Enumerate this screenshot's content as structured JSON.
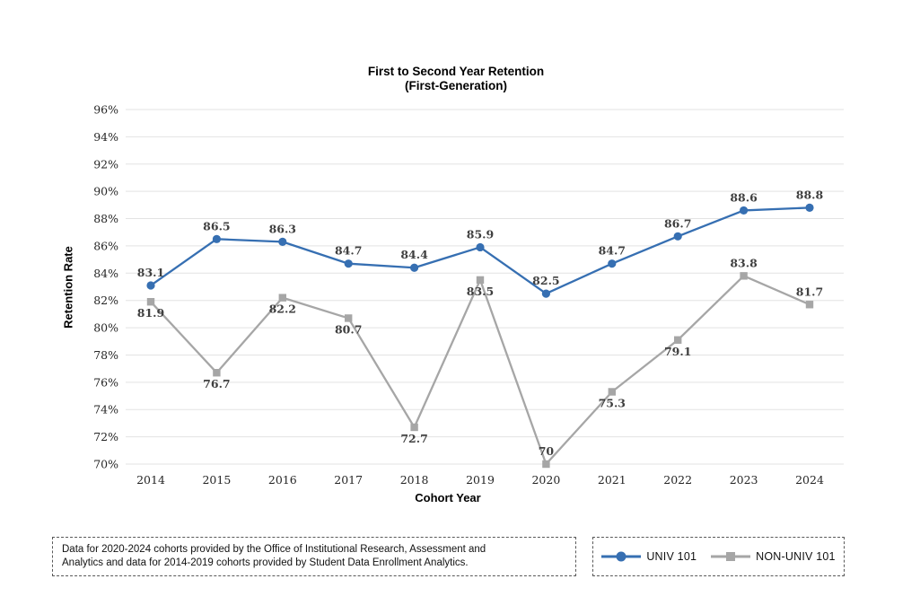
{
  "chart_data": {
    "type": "line",
    "title": "First to Second Year Retention",
    "subtitle": "(First-Generation)",
    "xlabel": "Cohort Year",
    "ylabel": "Retention Rate",
    "ylim": [
      70,
      96
    ],
    "ytick_step": 2,
    "ytick_suffix": "%",
    "grid": true,
    "legend_position": "bottom-right",
    "gridline_color": "#e3e3e3",
    "categories": [
      "2014",
      "2015",
      "2016",
      "2017",
      "2018",
      "2019",
      "2020",
      "2021",
      "2022",
      "2023",
      "2024"
    ],
    "series": [
      {
        "name": "UNIV 101",
        "color": "#366FB2",
        "marker": "circle",
        "values": [
          83.1,
          86.5,
          86.3,
          84.7,
          84.4,
          85.9,
          82.5,
          84.7,
          86.7,
          88.6,
          88.8
        ],
        "label_positions": [
          "above",
          "above",
          "above",
          "above",
          "above",
          "above",
          "above",
          "above",
          "above",
          "above",
          "above"
        ]
      },
      {
        "name": "NON-UNIV 101",
        "color": "#A6A6A6",
        "marker": "square",
        "values": [
          81.9,
          76.7,
          82.2,
          80.7,
          72.7,
          83.5,
          70,
          75.3,
          79.1,
          83.8,
          81.7
        ],
        "label_positions": [
          "below",
          "below",
          "below",
          "below",
          "below",
          "below",
          "above",
          "below",
          "below",
          "above",
          "above"
        ]
      }
    ]
  },
  "footnote": {
    "text": "Data for 2020-2024 cohorts provided by the Office of Institutional Research, Assessment and Analytics and data for 2014-2019 cohorts provided by Student Data Enrollment Analytics."
  }
}
